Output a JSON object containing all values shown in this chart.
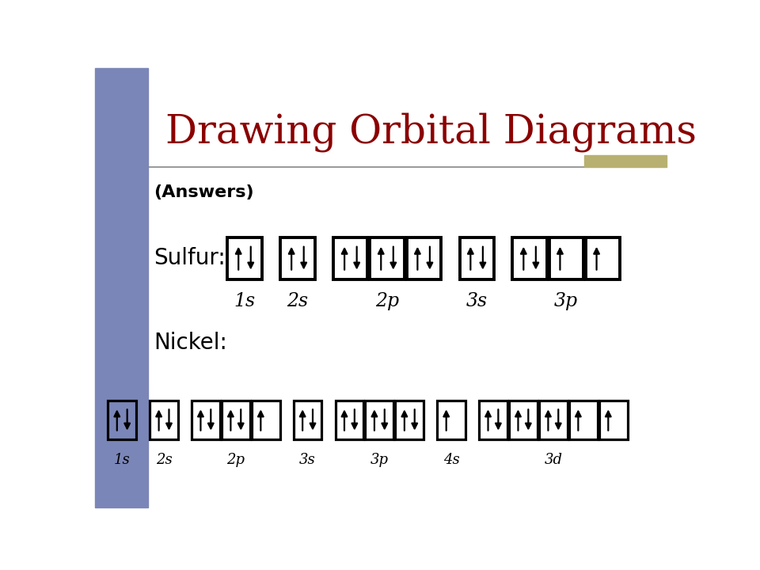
{
  "title": "Drawing Orbital Diagrams",
  "title_color": "#8B0000",
  "title_fontsize": 36,
  "answers_text": "(Answers)",
  "bg_color": "#FFFFFF",
  "left_panel_color": "#7B86B8",
  "gold_bar_color": "#B8B070",
  "sulfur_label": "Sulfur:",
  "nickel_label": "Nickel:",
  "sulfur_orbitals": [
    {
      "name": "1s",
      "boxes": [
        {
          "up": true,
          "down": true
        }
      ]
    },
    {
      "name": "2s",
      "boxes": [
        {
          "up": true,
          "down": true
        }
      ]
    },
    {
      "name": "2p",
      "boxes": [
        {
          "up": true,
          "down": true
        },
        {
          "up": true,
          "down": true
        },
        {
          "up": true,
          "down": true
        }
      ]
    },
    {
      "name": "3s",
      "boxes": [
        {
          "up": true,
          "down": true
        }
      ]
    },
    {
      "name": "3p",
      "boxes": [
        {
          "up": true,
          "down": true
        },
        {
          "up": true,
          "down": false
        },
        {
          "up": true,
          "down": false
        }
      ]
    }
  ],
  "nickel_orbitals": [
    {
      "name": "1s",
      "boxes": [
        {
          "up": true,
          "down": true
        }
      ]
    },
    {
      "name": "2s",
      "boxes": [
        {
          "up": true,
          "down": true
        }
      ]
    },
    {
      "name": "2p",
      "boxes": [
        {
          "up": true,
          "down": true
        },
        {
          "up": true,
          "down": true
        },
        {
          "up": true,
          "down": false
        }
      ]
    },
    {
      "name": "3s",
      "boxes": [
        {
          "up": true,
          "down": true
        }
      ]
    },
    {
      "name": "3p",
      "boxes": [
        {
          "up": true,
          "down": true
        },
        {
          "up": true,
          "down": true
        },
        {
          "up": true,
          "down": true
        }
      ]
    },
    {
      "name": "4s",
      "boxes": [
        {
          "up": true,
          "down": false
        }
      ]
    },
    {
      "name": "3d",
      "boxes": [
        {
          "up": true,
          "down": true
        },
        {
          "up": true,
          "down": true
        },
        {
          "up": true,
          "down": true
        },
        {
          "up": true,
          "down": false
        },
        {
          "up": true,
          "down": false
        }
      ]
    }
  ],
  "arrow_color": "#000000"
}
